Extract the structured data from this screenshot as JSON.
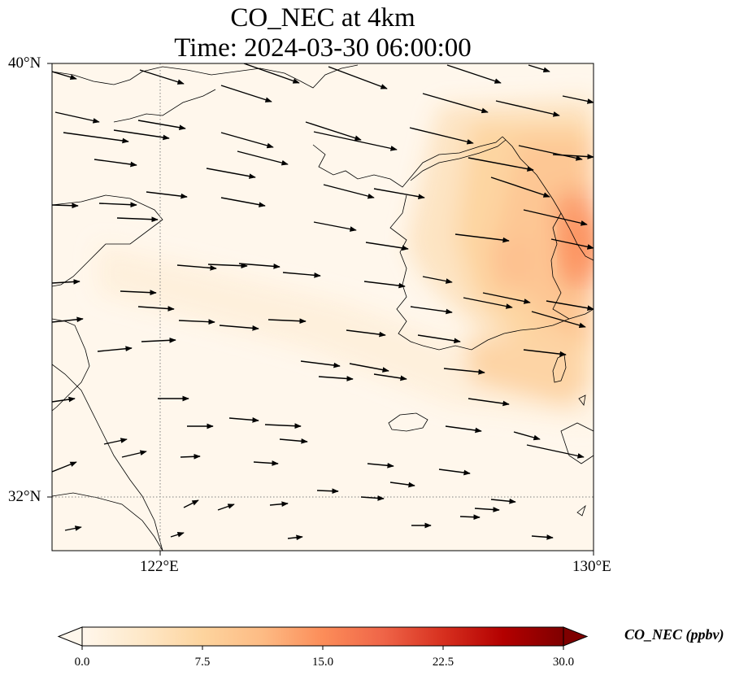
{
  "title": {
    "line1": "CO_NEC at 4km",
    "line2": "Time: 2024-03-30 06:00:00"
  },
  "map": {
    "extent": {
      "lon_min": 119,
      "lon_max": 130,
      "lat_min": 31,
      "lat_max": 40
    },
    "gridlines": {
      "lon": [
        122
      ],
      "lat": [
        32
      ]
    },
    "lat_ticks": [
      "40°N",
      "32°N"
    ],
    "lon_ticks": [
      "122°E",
      "130°E"
    ],
    "field_max_region": "east edge near 36°N (Korea east coast)"
  },
  "colorbar": {
    "title": "CO_NEC (ppbv)",
    "min": 0.0,
    "max": 30.0,
    "tick_labels": [
      "0.0",
      "7.5",
      "15.0",
      "22.5",
      "30.0"
    ],
    "colormap": "OrRd",
    "colors": [
      "#fff7ec",
      "#fee8c8",
      "#fdd49e",
      "#fdbb84",
      "#fc8d59",
      "#ef6548",
      "#d7301f",
      "#b30000",
      "#7f0000"
    ],
    "extend": "both"
  },
  "wind_vectors": "westerly to west-northwesterly winds over the Yellow Sea"
}
